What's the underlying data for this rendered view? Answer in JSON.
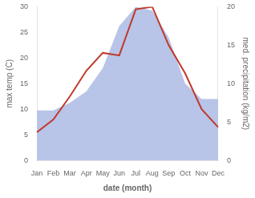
{
  "chart_data": {
    "type": "line",
    "categories": [
      "Jan",
      "Feb",
      "Mar",
      "Apr",
      "May",
      "Jun",
      "Jul",
      "Aug",
      "Sep",
      "Oct",
      "Nov",
      "Dec"
    ],
    "xlabel": "date (month)",
    "ylabel": "max temp (C)",
    "y2label": "med. precipitation (kg/m2)",
    "ylim": [
      0,
      30
    ],
    "yticks": [
      0,
      5,
      10,
      15,
      20,
      25,
      30
    ],
    "y2lim": [
      0,
      20
    ],
    "y2ticks": [
      0,
      5,
      10,
      15,
      20
    ],
    "grid": false,
    "series": [
      {
        "type": "area",
        "axis": "y2",
        "color": "#b8c4e8",
        "values": [
          6.5,
          6.5,
          7.5,
          9.0,
          12.0,
          17.5,
          20.0,
          19.5,
          16.0,
          10.0,
          8.0,
          8.0
        ]
      },
      {
        "type": "line",
        "color": "#c0392b",
        "values": [
          5.5,
          8.0,
          12.5,
          17.5,
          21.0,
          20.5,
          29.5,
          30.0,
          22.5,
          17.0,
          10.0,
          6.5
        ]
      }
    ]
  }
}
